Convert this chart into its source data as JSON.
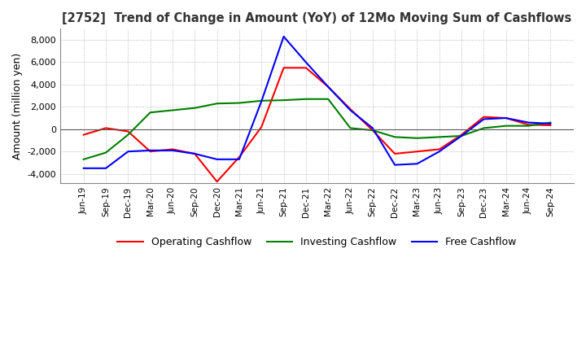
{
  "title": "[2752]  Trend of Change in Amount (YoY) of 12Mo Moving Sum of Cashflows",
  "ylabel": "Amount (million yen)",
  "ylim": [
    -4800,
    9000
  ],
  "yticks": [
    -4000,
    -2000,
    0,
    2000,
    4000,
    6000,
    8000
  ],
  "background_color": "#ffffff",
  "grid_color": "#aaaaaa",
  "x_labels": [
    "Jun-19",
    "Sep-19",
    "Dec-19",
    "Mar-20",
    "Jun-20",
    "Sep-20",
    "Dec-20",
    "Mar-21",
    "Jun-21",
    "Sep-21",
    "Dec-21",
    "Mar-22",
    "Jun-22",
    "Sep-22",
    "Dec-22",
    "Mar-23",
    "Jun-23",
    "Sep-23",
    "Dec-23",
    "Mar-24",
    "Jun-24",
    "Sep-24"
  ],
  "operating": [
    -500,
    100,
    -200,
    -2000,
    -1800,
    -2200,
    -4700,
    -2500,
    200,
    5500,
    5500,
    3800,
    1800,
    -100,
    -2200,
    -2000,
    -1800,
    -500,
    1100,
    1000,
    400,
    350
  ],
  "investing": [
    -2700,
    -2100,
    -500,
    1500,
    1700,
    1900,
    2300,
    2350,
    2550,
    2600,
    2700,
    2700,
    100,
    -100,
    -700,
    -800,
    -700,
    -600,
    100,
    300,
    300,
    600
  ],
  "free": [
    -3500,
    -3500,
    -2000,
    -1900,
    -1900,
    -2200,
    -2700,
    -2700,
    2500,
    8300,
    6000,
    3800,
    1700,
    100,
    -3200,
    -3100,
    -2000,
    -600,
    900,
    1000,
    600,
    500
  ],
  "line_colors": {
    "operating": "#ff0000",
    "investing": "#008000",
    "free": "#0000ff"
  },
  "legend_labels": [
    "Operating Cashflow",
    "Investing Cashflow",
    "Free Cashflow"
  ]
}
